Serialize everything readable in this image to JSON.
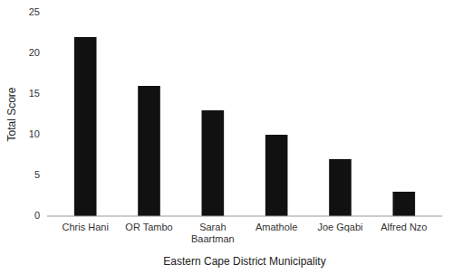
{
  "chart_data": {
    "type": "bar",
    "categories": [
      "Chris Hani",
      "OR Tambo",
      "Sarah Baartman",
      "Amathole",
      "Joe Gqabi",
      "Alfred Nzo"
    ],
    "values": [
      22,
      16,
      13,
      10,
      7,
      3
    ],
    "color": "#111111",
    "xlabel": "Eastern Cape District Municipality",
    "ylabel": "Total Score",
    "ylim": [
      0,
      25
    ],
    "yticks": [
      0,
      5,
      10,
      15,
      20,
      25
    ],
    "grid": false
  }
}
